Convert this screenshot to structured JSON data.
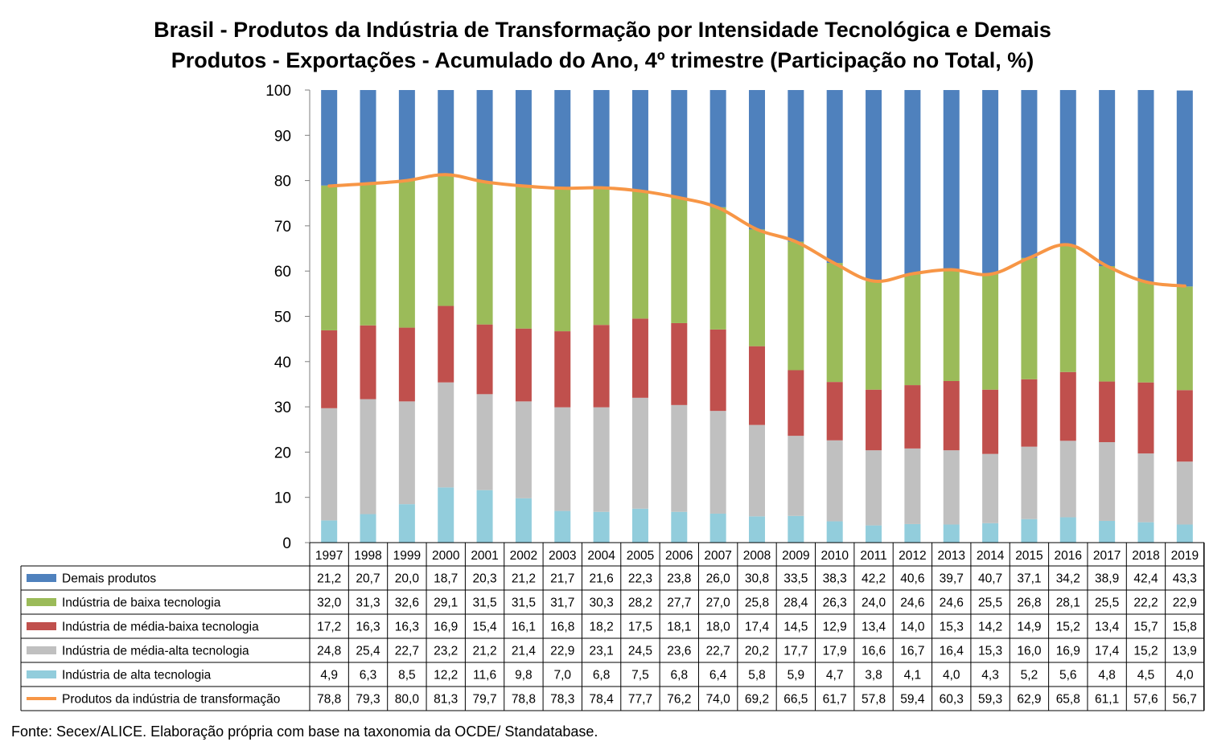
{
  "title": {
    "line1": "Brasil - Produtos da Indústria de Transformação por Intensidade Tecnológica e Demais",
    "line2": "Produtos - Exportações - Acumulado do Ano, 4º trimestre (Participação no Total, %)"
  },
  "source": "Fonte: Secex/ALICE. Elaboração própria com base na taxonomia da OCDE/ Standatabase.",
  "chart_data": {
    "type": "bar",
    "stacked": true,
    "with_data_table": true,
    "categories": [
      "1997",
      "1998",
      "1999",
      "2000",
      "2001",
      "2002",
      "2003",
      "2004",
      "2005",
      "2006",
      "2007",
      "2008",
      "2009",
      "2010",
      "2011",
      "2012",
      "2013",
      "2014",
      "2015",
      "2016",
      "2017",
      "2018",
      "2019"
    ],
    "ylim": [
      0,
      100
    ],
    "yticks": [
      "0",
      "10",
      "20",
      "30",
      "40",
      "50",
      "60",
      "70",
      "80",
      "90",
      "100"
    ],
    "grid": false,
    "stack_order": [
      "Indústria de alta tecnologia",
      "Indústria de média-alta tecnologia",
      "Indústria de média-baixa tecnologia",
      "Indústria de baixa tecnologia",
      "Demais produtos"
    ],
    "series": [
      {
        "name": "Demais produtos",
        "kind": "bar",
        "color": "#4F81BD",
        "values": [
          21.2,
          20.7,
          20.0,
          18.7,
          20.3,
          21.2,
          21.7,
          21.6,
          22.3,
          23.8,
          26.0,
          30.8,
          33.5,
          38.3,
          42.2,
          40.6,
          39.7,
          40.7,
          37.1,
          34.2,
          38.9,
          42.4,
          43.3
        ],
        "labels": [
          "21,2",
          "20,7",
          "20,0",
          "18,7",
          "20,3",
          "21,2",
          "21,7",
          "21,6",
          "22,3",
          "23,8",
          "26,0",
          "30,8",
          "33,5",
          "38,3",
          "42,2",
          "40,6",
          "39,7",
          "40,7",
          "37,1",
          "34,2",
          "38,9",
          "42,4",
          "43,3"
        ]
      },
      {
        "name": "Indústria de baixa tecnologia",
        "kind": "bar",
        "color": "#9BBB59",
        "values": [
          32.0,
          31.3,
          32.6,
          29.1,
          31.5,
          31.5,
          31.7,
          30.3,
          28.2,
          27.7,
          27.0,
          25.8,
          28.4,
          26.3,
          24.0,
          24.6,
          24.6,
          25.5,
          26.8,
          28.1,
          25.5,
          22.2,
          22.9
        ],
        "labels": [
          "32,0",
          "31,3",
          "32,6",
          "29,1",
          "31,5",
          "31,5",
          "31,7",
          "30,3",
          "28,2",
          "27,7",
          "27,0",
          "25,8",
          "28,4",
          "26,3",
          "24,0",
          "24,6",
          "24,6",
          "25,5",
          "26,8",
          "28,1",
          "25,5",
          "22,2",
          "22,9"
        ]
      },
      {
        "name": "Indústria de média-baixa tecnologia",
        "kind": "bar",
        "color": "#C0504D",
        "values": [
          17.2,
          16.3,
          16.3,
          16.9,
          15.4,
          16.1,
          16.8,
          18.2,
          17.5,
          18.1,
          18.0,
          17.4,
          14.5,
          12.9,
          13.4,
          14.0,
          15.3,
          14.2,
          14.9,
          15.2,
          13.4,
          15.7,
          15.8
        ],
        "labels": [
          "17,2",
          "16,3",
          "16,3",
          "16,9",
          "15,4",
          "16,1",
          "16,8",
          "18,2",
          "17,5",
          "18,1",
          "18,0",
          "17,4",
          "14,5",
          "12,9",
          "13,4",
          "14,0",
          "15,3",
          "14,2",
          "14,9",
          "15,2",
          "13,4",
          "15,7",
          "15,8"
        ]
      },
      {
        "name": "Indústria de média-alta tecnologia",
        "kind": "bar",
        "color": "#C0C0C0",
        "values": [
          24.8,
          25.4,
          22.7,
          23.2,
          21.2,
          21.4,
          22.9,
          23.1,
          24.5,
          23.6,
          22.7,
          20.2,
          17.7,
          17.9,
          16.6,
          16.7,
          16.4,
          15.3,
          16.0,
          16.9,
          17.4,
          15.2,
          13.9
        ],
        "labels": [
          "24,8",
          "25,4",
          "22,7",
          "23,2",
          "21,2",
          "21,4",
          "22,9",
          "23,1",
          "24,5",
          "23,6",
          "22,7",
          "20,2",
          "17,7",
          "17,9",
          "16,6",
          "16,7",
          "16,4",
          "15,3",
          "16,0",
          "16,9",
          "17,4",
          "15,2",
          "13,9"
        ]
      },
      {
        "name": "Indústria de alta tecnologia",
        "kind": "bar",
        "color": "#92CDDC",
        "values": [
          4.9,
          6.3,
          8.5,
          12.2,
          11.6,
          9.8,
          7.0,
          6.8,
          7.5,
          6.8,
          6.4,
          5.8,
          5.9,
          4.7,
          3.8,
          4.1,
          4.0,
          4.3,
          5.2,
          5.6,
          4.8,
          4.5,
          4.0
        ],
        "labels": [
          "4,9",
          "6,3",
          "8,5",
          "12,2",
          "11,6",
          "9,8",
          "7,0",
          "6,8",
          "7,5",
          "6,8",
          "6,4",
          "5,8",
          "5,9",
          "4,7",
          "3,8",
          "4,1",
          "4,0",
          "4,3",
          "5,2",
          "5,6",
          "4,8",
          "4,5",
          "4,0"
        ]
      },
      {
        "name": "Produtos da indústria de transformação",
        "kind": "line",
        "color": "#F79646",
        "values": [
          78.8,
          79.3,
          80.0,
          81.3,
          79.7,
          78.8,
          78.3,
          78.4,
          77.7,
          76.2,
          74.0,
          69.2,
          66.5,
          61.7,
          57.8,
          59.4,
          60.3,
          59.3,
          62.9,
          65.8,
          61.1,
          57.6,
          56.7
        ],
        "labels": [
          "78,8",
          "79,3",
          "80,0",
          "81,3",
          "79,7",
          "78,8",
          "78,3",
          "78,4",
          "77,7",
          "76,2",
          "74,0",
          "69,2",
          "66,5",
          "61,7",
          "57,8",
          "59,4",
          "60,3",
          "59,3",
          "62,9",
          "65,8",
          "61,1",
          "57,6",
          "56,7"
        ]
      }
    ]
  }
}
